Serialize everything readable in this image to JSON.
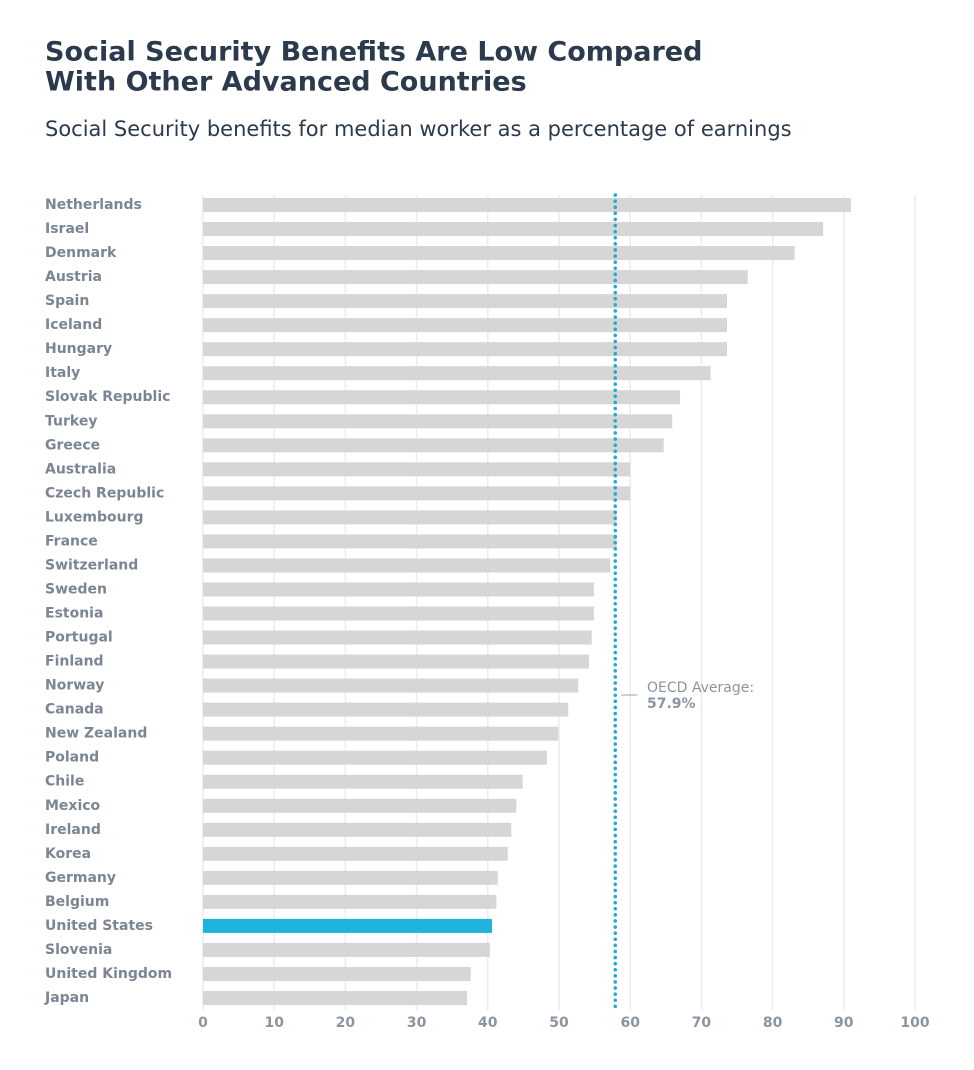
{
  "chart_data": {
    "type": "bar",
    "orientation": "horizontal",
    "title": [
      "Social Security Benefits Are Low Compared",
      "With Other Advanced Countries"
    ],
    "subtitle": "Social Security benefits for median worker as a percentage of earnings",
    "categories": [
      "Netherlands",
      "Israel",
      "Denmark",
      "Austria",
      "Spain",
      "Iceland",
      "Hungary",
      "Italy",
      "Slovak Republic",
      "Turkey",
      "Greece",
      "Australia",
      "Czech Republic",
      "Luxembourg",
      "France",
      "Switzerland",
      "Sweden",
      "Estonia",
      "Portugal",
      "Finland",
      "Norway",
      "Canada",
      "New Zealand",
      "Poland",
      "Chile",
      "Mexico",
      "Ireland",
      "Korea",
      "Germany",
      "Belgium",
      "United States",
      "Slovenia",
      "United Kingdom",
      "Japan"
    ],
    "values": [
      91.0,
      87.1,
      83.1,
      76.5,
      73.6,
      73.6,
      73.6,
      71.3,
      67.0,
      65.9,
      64.7,
      60.0,
      60.0,
      58.1,
      58.1,
      57.2,
      54.9,
      54.9,
      54.6,
      54.2,
      52.7,
      51.3,
      49.9,
      48.3,
      44.9,
      44.0,
      43.3,
      42.8,
      41.4,
      41.2,
      40.6,
      40.3,
      37.6,
      37.1
    ],
    "colors": [
      "#d6d6d6",
      "#d6d6d6",
      "#d6d6d6",
      "#d6d6d6",
      "#d6d6d6",
      "#d6d6d6",
      "#d6d6d6",
      "#d6d6d6",
      "#d6d6d6",
      "#d6d6d6",
      "#d6d6d6",
      "#d6d6d6",
      "#d6d6d6",
      "#d6d6d6",
      "#d6d6d6",
      "#d6d6d6",
      "#d6d6d6",
      "#d6d6d6",
      "#d6d6d6",
      "#d6d6d6",
      "#d6d6d6",
      "#d6d6d6",
      "#d6d6d6",
      "#d6d6d6",
      "#d6d6d6",
      "#d6d6d6",
      "#d6d6d6",
      "#d6d6d6",
      "#d6d6d6",
      "#d6d6d6",
      "#1fb3dc",
      "#d6d6d6",
      "#d6d6d6",
      "#d6d6d6"
    ],
    "xlim": [
      0,
      100
    ],
    "xticks": [
      0,
      10,
      20,
      30,
      40,
      50,
      60,
      70,
      80,
      90,
      100
    ],
    "grid": true,
    "reference_line": {
      "label": "OECD Average:",
      "value": 57.9,
      "value_label": "57.9%",
      "color": "#1fa9d6"
    }
  }
}
